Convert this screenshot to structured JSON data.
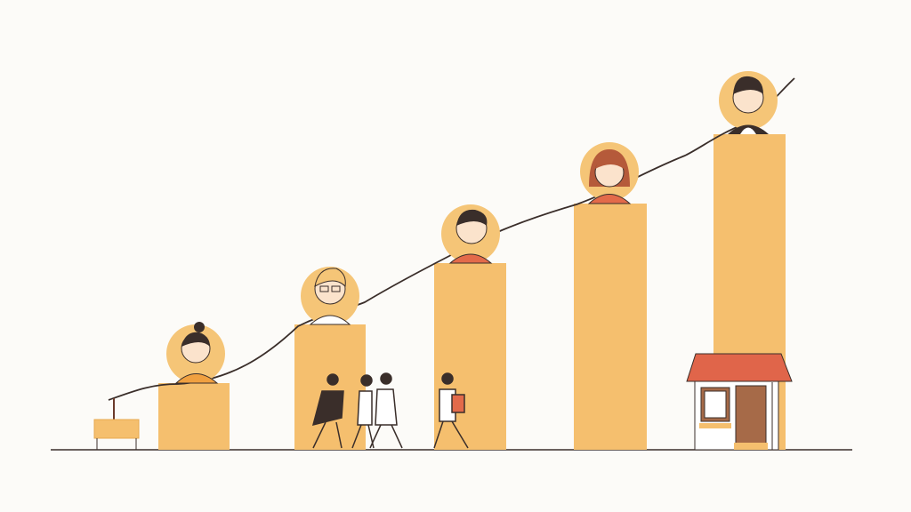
{
  "illustration": {
    "subject": "growth-bars-with-people",
    "colors": {
      "background": "#fcfbf8",
      "bar": "#f5bf6e",
      "halo": "#f5c577",
      "line": "#3a2e2a",
      "roof": "#e0654a",
      "door": "#a66a48",
      "shirt_red": "#e36a4a",
      "skin": "#fbe3cc"
    },
    "bars": [
      {
        "name": "bar-1",
        "level": 1
      },
      {
        "name": "bar-2",
        "level": 2
      },
      {
        "name": "bar-3",
        "level": 3
      },
      {
        "name": "bar-4",
        "level": 4
      },
      {
        "name": "bar-5",
        "level": 5
      }
    ],
    "icons": [
      "person-avatar-icon",
      "shop-icon",
      "signpost-icon",
      "walking-people-icon",
      "trend-line-icon"
    ]
  }
}
